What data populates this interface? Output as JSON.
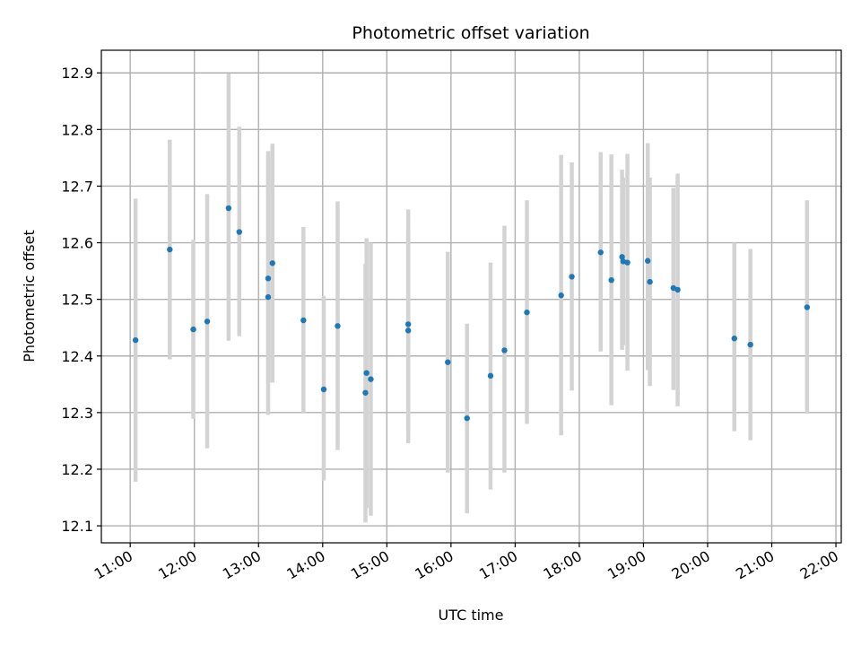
{
  "chart_data": {
    "type": "scatter",
    "title": "Photometric offset variation",
    "xlabel": "UTC time",
    "ylabel": "Photometric offset",
    "x_axis_type": "time",
    "x_ticks": [
      "11:00",
      "12:00",
      "13:00",
      "14:00",
      "15:00",
      "16:00",
      "17:00",
      "18:00",
      "19:00",
      "20:00",
      "21:00",
      "22:00"
    ],
    "y_ticks": [
      "12.1",
      "12.2",
      "12.3",
      "12.4",
      "12.5",
      "12.6",
      "12.7",
      "12.8",
      "12.9"
    ],
    "xlim": [
      "10:33",
      "22:05"
    ],
    "ylim": [
      12.07,
      12.94
    ],
    "grid": true,
    "marker_color": "#1f77b4",
    "errorbar_color": "#d3d3d3",
    "points": [
      {
        "x": "11:05",
        "y": 12.428,
        "low": 12.178,
        "high": 12.678
      },
      {
        "x": "11:37",
        "y": 12.588,
        "low": 12.394,
        "high": 12.782
      },
      {
        "x": "11:59",
        "y": 12.447,
        "low": 12.289,
        "high": 12.605
      },
      {
        "x": "12:12",
        "y": 12.461,
        "low": 12.237,
        "high": 12.686
      },
      {
        "x": "12:32",
        "y": 12.661,
        "low": 12.427,
        "high": 12.899
      },
      {
        "x": "12:42",
        "y": 12.619,
        "low": 12.435,
        "high": 12.805
      },
      {
        "x": "13:09",
        "y": 12.537,
        "low": 12.296,
        "high": 12.753
      },
      {
        "x": "13:09",
        "y": 12.504,
        "low": 12.352,
        "high": 12.762
      },
      {
        "x": "13:13",
        "y": 12.564,
        "low": 12.353,
        "high": 12.775
      },
      {
        "x": "13:42",
        "y": 12.463,
        "low": 12.3,
        "high": 12.628
      },
      {
        "x": "14:01",
        "y": 12.341,
        "low": 12.18,
        "high": 12.506
      },
      {
        "x": "14:14",
        "y": 12.453,
        "low": 12.234,
        "high": 12.673
      },
      {
        "x": "14:40",
        "y": 12.335,
        "low": 12.106,
        "high": 12.563
      },
      {
        "x": "14:41",
        "y": 12.37,
        "low": 12.132,
        "high": 12.608
      },
      {
        "x": "14:45",
        "y": 12.359,
        "low": 12.118,
        "high": 12.6
      },
      {
        "x": "15:20",
        "y": 12.456,
        "low": 12.246,
        "high": 12.659
      },
      {
        "x": "15:20",
        "y": 12.445,
        "low": 12.26,
        "high": 12.63
      },
      {
        "x": "15:57",
        "y": 12.389,
        "low": 12.194,
        "high": 12.584
      },
      {
        "x": "16:15",
        "y": 12.29,
        "low": 12.122,
        "high": 12.457
      },
      {
        "x": "16:37",
        "y": 12.365,
        "low": 12.164,
        "high": 12.565
      },
      {
        "x": "16:50",
        "y": 12.41,
        "low": 12.194,
        "high": 12.63
      },
      {
        "x": "17:11",
        "y": 12.477,
        "low": 12.28,
        "high": 12.675
      },
      {
        "x": "17:43",
        "y": 12.507,
        "low": 12.26,
        "high": 12.755
      },
      {
        "x": "17:53",
        "y": 12.54,
        "low": 12.339,
        "high": 12.742
      },
      {
        "x": "18:20",
        "y": 12.583,
        "low": 12.408,
        "high": 12.76
      },
      {
        "x": "18:30",
        "y": 12.534,
        "low": 12.313,
        "high": 12.756
      },
      {
        "x": "18:40",
        "y": 12.575,
        "low": 12.411,
        "high": 12.729
      },
      {
        "x": "18:41",
        "y": 12.567,
        "low": 12.419,
        "high": 12.715
      },
      {
        "x": "18:45",
        "y": 12.565,
        "low": 12.374,
        "high": 12.757
      },
      {
        "x": "19:04",
        "y": 12.568,
        "low": 12.375,
        "high": 12.776
      },
      {
        "x": "19:06",
        "y": 12.531,
        "low": 12.347,
        "high": 12.715
      },
      {
        "x": "19:28",
        "y": 12.52,
        "low": 12.34,
        "high": 12.697
      },
      {
        "x": "19:32",
        "y": 12.517,
        "low": 12.311,
        "high": 12.722
      },
      {
        "x": "20:25",
        "y": 12.431,
        "low": 12.267,
        "high": 12.6
      },
      {
        "x": "20:40",
        "y": 12.42,
        "low": 12.251,
        "high": 12.589
      },
      {
        "x": "21:33",
        "y": 12.486,
        "low": 12.298,
        "high": 12.675
      }
    ]
  }
}
